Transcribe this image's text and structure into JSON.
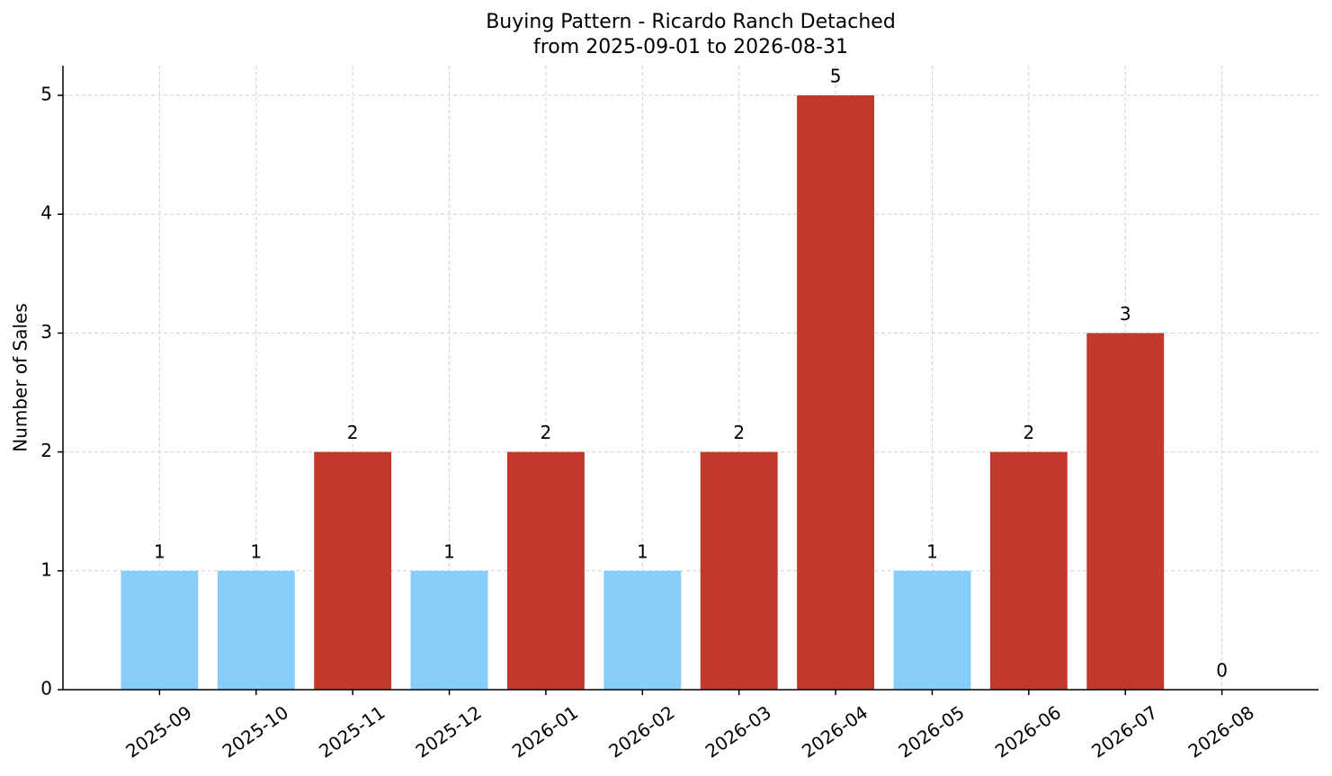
{
  "chart_data": {
    "type": "bar",
    "title": "Buying Pattern - Ricardo Ranch Detached",
    "subtitle": "from 2025-09-01 to 2026-08-31",
    "y_label": "Number of Sales",
    "categories": [
      "2025-09",
      "2025-10",
      "2025-11",
      "2025-12",
      "2026-01",
      "2026-02",
      "2026-03",
      "2026-04",
      "2026-05",
      "2026-06",
      "2026-07",
      "2026-08"
    ],
    "values": [
      1,
      1,
      2,
      1,
      2,
      1,
      2,
      5,
      1,
      2,
      3,
      0
    ],
    "colors": [
      "#87cefa",
      "#87cefa",
      "#c0392b",
      "#87cefa",
      "#c0392b",
      "#87cefa",
      "#c0392b",
      "#c0392b",
      "#87cefa",
      "#c0392b",
      "#c0392b",
      "#c0392b"
    ],
    "ylim": [
      0,
      5.25
    ],
    "yticks": [
      0,
      1,
      2,
      3,
      4,
      5
    ],
    "grid": true
  }
}
